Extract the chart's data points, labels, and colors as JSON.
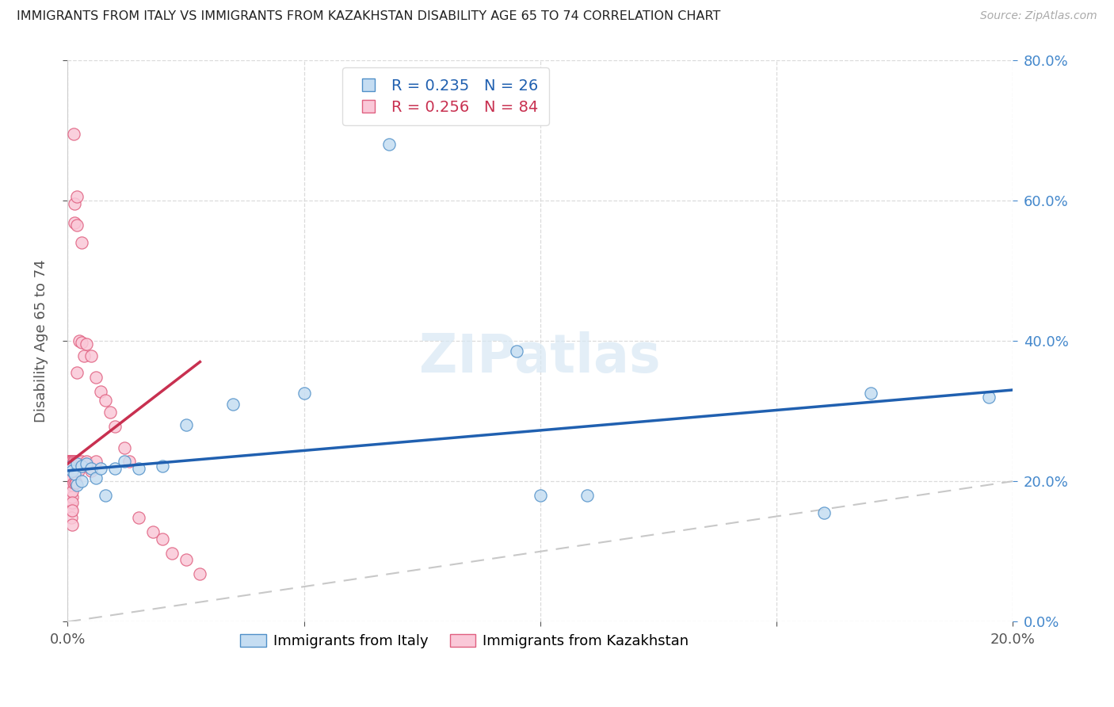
{
  "title": "IMMIGRANTS FROM ITALY VS IMMIGRANTS FROM KAZAKHSTAN DISABILITY AGE 65 TO 74 CORRELATION CHART",
  "source": "Source: ZipAtlas.com",
  "ylabel": "Disability Age 65 to 74",
  "legend_italy": "Immigrants from Italy",
  "legend_kazakhstan": "Immigrants from Kazakhstan",
  "r_italy": 0.235,
  "n_italy": 26,
  "r_kazakhstan": 0.256,
  "n_kazakhstan": 84,
  "xlim": [
    0.0,
    0.2
  ],
  "ylim": [
    0.0,
    0.8
  ],
  "xticks": [
    0.0,
    0.05,
    0.1,
    0.15,
    0.2
  ],
  "yticks": [
    0.0,
    0.2,
    0.4,
    0.6,
    0.8
  ],
  "color_italy_fill": "#c5ddf2",
  "color_italy_edge": "#5090c8",
  "color_kaz_fill": "#fac8d8",
  "color_kaz_edge": "#e06080",
  "color_italy_line": "#2060b0",
  "color_kaz_line": "#c83050",
  "color_diag": "#c8c8c8",
  "italy_x": [
    0.0005,
    0.001,
    0.0015,
    0.002,
    0.002,
    0.003,
    0.003,
    0.004,
    0.005,
    0.006,
    0.007,
    0.008,
    0.01,
    0.012,
    0.015,
    0.02,
    0.025,
    0.035,
    0.05,
    0.068,
    0.095,
    0.1,
    0.11,
    0.16,
    0.17,
    0.195
  ],
  "italy_y": [
    0.22,
    0.215,
    0.21,
    0.225,
    0.195,
    0.222,
    0.2,
    0.225,
    0.218,
    0.205,
    0.218,
    0.18,
    0.218,
    0.228,
    0.218,
    0.222,
    0.28,
    0.31,
    0.325,
    0.68,
    0.385,
    0.18,
    0.18,
    0.155,
    0.325,
    0.32
  ],
  "kaz_x": [
    0.0001,
    0.0001,
    0.0001,
    0.0002,
    0.0002,
    0.0002,
    0.0002,
    0.0003,
    0.0003,
    0.0003,
    0.0003,
    0.0003,
    0.0004,
    0.0004,
    0.0004,
    0.0004,
    0.0005,
    0.0005,
    0.0005,
    0.0005,
    0.0005,
    0.0006,
    0.0006,
    0.0006,
    0.0006,
    0.0007,
    0.0007,
    0.0007,
    0.0008,
    0.0008,
    0.0008,
    0.0009,
    0.0009,
    0.001,
    0.001,
    0.001,
    0.001,
    0.001,
    0.001,
    0.001,
    0.001,
    0.0012,
    0.0012,
    0.0013,
    0.0013,
    0.0014,
    0.0015,
    0.0015,
    0.0015,
    0.0016,
    0.0016,
    0.0017,
    0.0018,
    0.0018,
    0.0019,
    0.002,
    0.002,
    0.002,
    0.002,
    0.0022,
    0.0025,
    0.0025,
    0.003,
    0.003,
    0.003,
    0.0035,
    0.004,
    0.004,
    0.005,
    0.005,
    0.006,
    0.006,
    0.007,
    0.008,
    0.009,
    0.01,
    0.012,
    0.013,
    0.015,
    0.018,
    0.02,
    0.022,
    0.025,
    0.028
  ],
  "kaz_y": [
    0.228,
    0.215,
    0.2,
    0.228,
    0.218,
    0.205,
    0.188,
    0.228,
    0.215,
    0.2,
    0.185,
    0.17,
    0.228,
    0.218,
    0.2,
    0.188,
    0.228,
    0.215,
    0.2,
    0.185,
    0.165,
    0.228,
    0.218,
    0.2,
    0.168,
    0.228,
    0.215,
    0.158,
    0.228,
    0.2,
    0.148,
    0.228,
    0.178,
    0.228,
    0.218,
    0.205,
    0.195,
    0.185,
    0.17,
    0.158,
    0.138,
    0.228,
    0.198,
    0.695,
    0.228,
    0.215,
    0.595,
    0.568,
    0.228,
    0.215,
    0.198,
    0.228,
    0.215,
    0.198,
    0.215,
    0.605,
    0.565,
    0.355,
    0.228,
    0.215,
    0.4,
    0.228,
    0.54,
    0.398,
    0.228,
    0.378,
    0.395,
    0.228,
    0.378,
    0.215,
    0.348,
    0.228,
    0.328,
    0.315,
    0.298,
    0.278,
    0.248,
    0.228,
    0.148,
    0.128,
    0.118,
    0.098,
    0.088,
    0.068
  ]
}
